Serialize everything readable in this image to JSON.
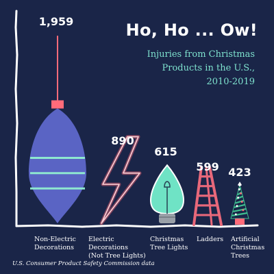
{
  "title": "Ho, Ho ... Ow!",
  "subtitle_lines": [
    "Injuries from Christmas",
    "Products in the U.S.,",
    "2010-2019"
  ],
  "source": "U.S. Consumer Product Safety Commission data",
  "colors": {
    "background": "#1a2548",
    "ornament": "#5a64c4",
    "accent_teal": "#8ee8d0",
    "neon_red": "#ff6b7a",
    "bulb_glow": "#6fe3c5",
    "ladder": "#e8687a",
    "tree_green": "#3fbf8f",
    "axis": "#ffffff"
  },
  "chart_data": {
    "type": "bar",
    "style": "pictograph",
    "categories": [
      "Non-Electric\nDecorations",
      "Electric\nDecorations\n(Not Tree Lights)",
      "Christmas\nTree Lights",
      "Ladders",
      "Artificial\nChristmas\nTrees"
    ],
    "values": [
      1959,
      890,
      615,
      599,
      423
    ],
    "value_labels": [
      "1,959",
      "890",
      "615",
      "599",
      "423"
    ],
    "icons": [
      "ornament-icon",
      "lightning-bolt-icon",
      "christmas-light-bulb-icon",
      "ladder-icon",
      "christmas-tree-icon"
    ],
    "ylim": [
      0,
      2000
    ],
    "grid": false,
    "legend": "none"
  }
}
